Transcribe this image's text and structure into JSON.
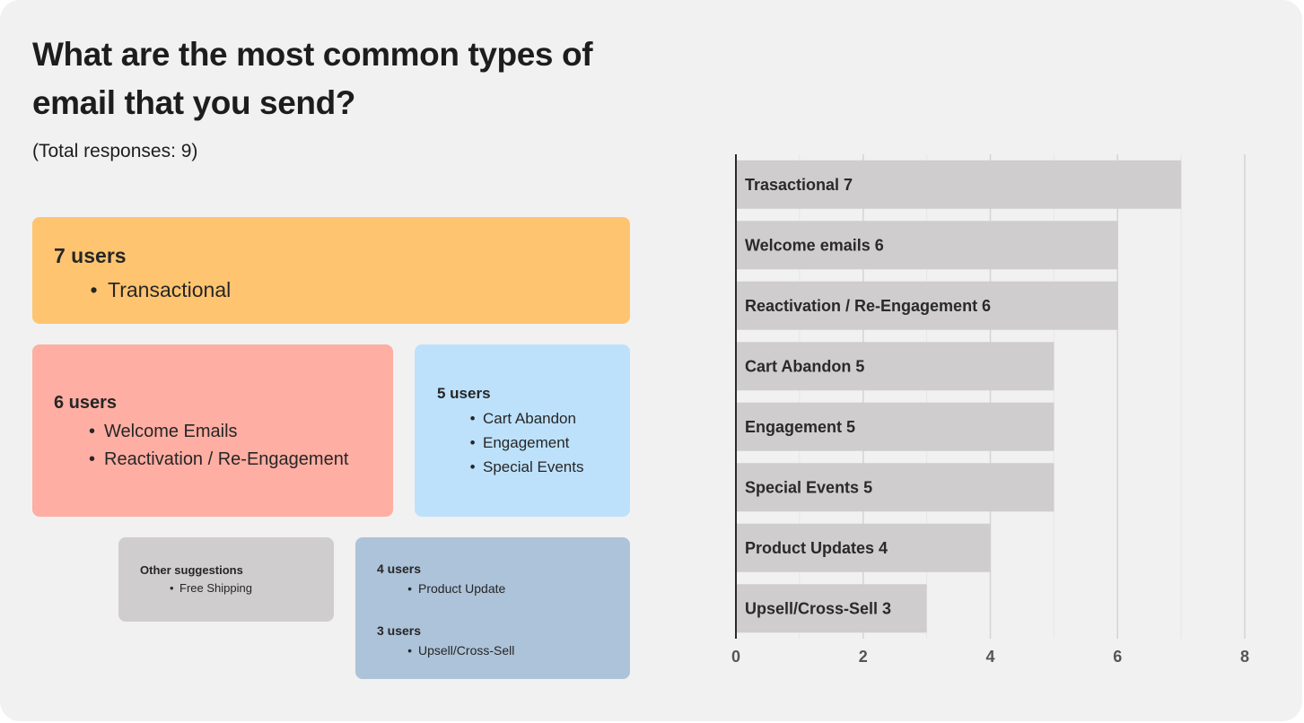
{
  "title": "What are the most common types of email that you send?",
  "subtitle": "(Total responses: 9)",
  "cards": {
    "seven": {
      "heading": "7 users",
      "items": [
        "Transactional"
      ],
      "color": "#ffc470"
    },
    "six": {
      "heading": "6 users",
      "items": [
        "Welcome Emails",
        "Reactivation / Re-Engagement"
      ],
      "color": "#ffaea3"
    },
    "five": {
      "heading": "5 users",
      "items": [
        "Cart Abandon",
        "Engagement",
        "Special Events"
      ],
      "color": "#bde1fb"
    },
    "other": {
      "heading": "Other suggestions",
      "items": [
        "Free Shipping"
      ],
      "color": "#cfcdcd"
    },
    "four_three": {
      "heading_a": "4 users",
      "items_a": [
        "Product Update"
      ],
      "heading_b": "3 users",
      "items_b": [
        "Upsell/Cross-Sell"
      ],
      "color": "#adc3d9"
    }
  },
  "chart_data": {
    "type": "bar",
    "orientation": "horizontal",
    "categories": [
      "Trasactional",
      "Welcome emails",
      "Reactivation / Re-Engagement",
      "Cart Abandon",
      "Engagement",
      "Special Events",
      "Product Updates",
      "Upsell/Cross-Sell"
    ],
    "values": [
      7,
      6,
      6,
      5,
      5,
      5,
      4,
      3
    ],
    "bar_labels": [
      "Trasactional 7",
      "Welcome emails 6",
      "Reactivation / Re-Engagement 6",
      "Cart Abandon 5",
      "Engagement 5",
      "Special Events 5",
      "Product Updates 4",
      "Upsell/Cross-Sell 3"
    ],
    "xlim": [
      0,
      8
    ],
    "xticks": [
      0,
      2,
      4,
      6,
      8
    ],
    "grid": true,
    "bar_color": "#cfcdcd",
    "title": "",
    "xlabel": "",
    "ylabel": ""
  }
}
